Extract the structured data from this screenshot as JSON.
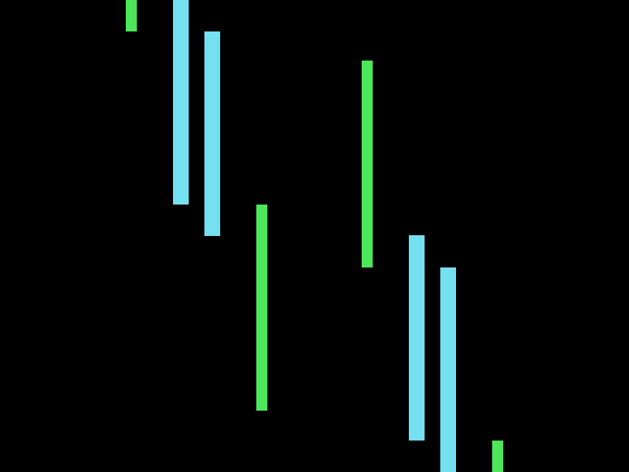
{
  "colors": {
    "background": "#000000",
    "green": "#4ee65a",
    "cyan": "#74e0f0"
  },
  "bars": [
    {
      "name": "green-bar-1",
      "color": "green"
    },
    {
      "name": "cyan-bar-1",
      "color": "cyan"
    },
    {
      "name": "cyan-bar-2",
      "color": "cyan"
    },
    {
      "name": "green-bar-2",
      "color": "green"
    },
    {
      "name": "green-bar-3",
      "color": "green"
    },
    {
      "name": "cyan-bar-3",
      "color": "cyan"
    },
    {
      "name": "cyan-bar-4",
      "color": "cyan"
    },
    {
      "name": "green-bar-4",
      "color": "green"
    }
  ]
}
